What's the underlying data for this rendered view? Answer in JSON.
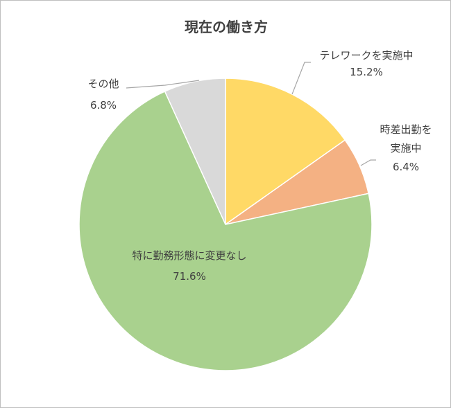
{
  "chart_data": {
    "type": "pie",
    "title": "現在の働き方",
    "categories": [
      "テレワークを実施中",
      "時差出勤を実施中",
      "特に勤務形態に変更なし",
      "その他"
    ],
    "values": [
      15.2,
      6.4,
      71.6,
      6.8
    ],
    "value_labels": [
      "15.2%",
      "6.4%",
      "71.6%",
      "6.8%"
    ],
    "label_lines": [
      [
        "テレワークを実施中"
      ],
      [
        "時差出勤を",
        "実施中"
      ],
      [
        "特に勤務形態に変更なし"
      ],
      [
        "その他"
      ]
    ],
    "colors": [
      "#ffd966",
      "#f4b183",
      "#a9d18e",
      "#d9d9d9"
    ],
    "start_angle": "12 o'clock",
    "direction": "clockwise",
    "legend": "none"
  }
}
